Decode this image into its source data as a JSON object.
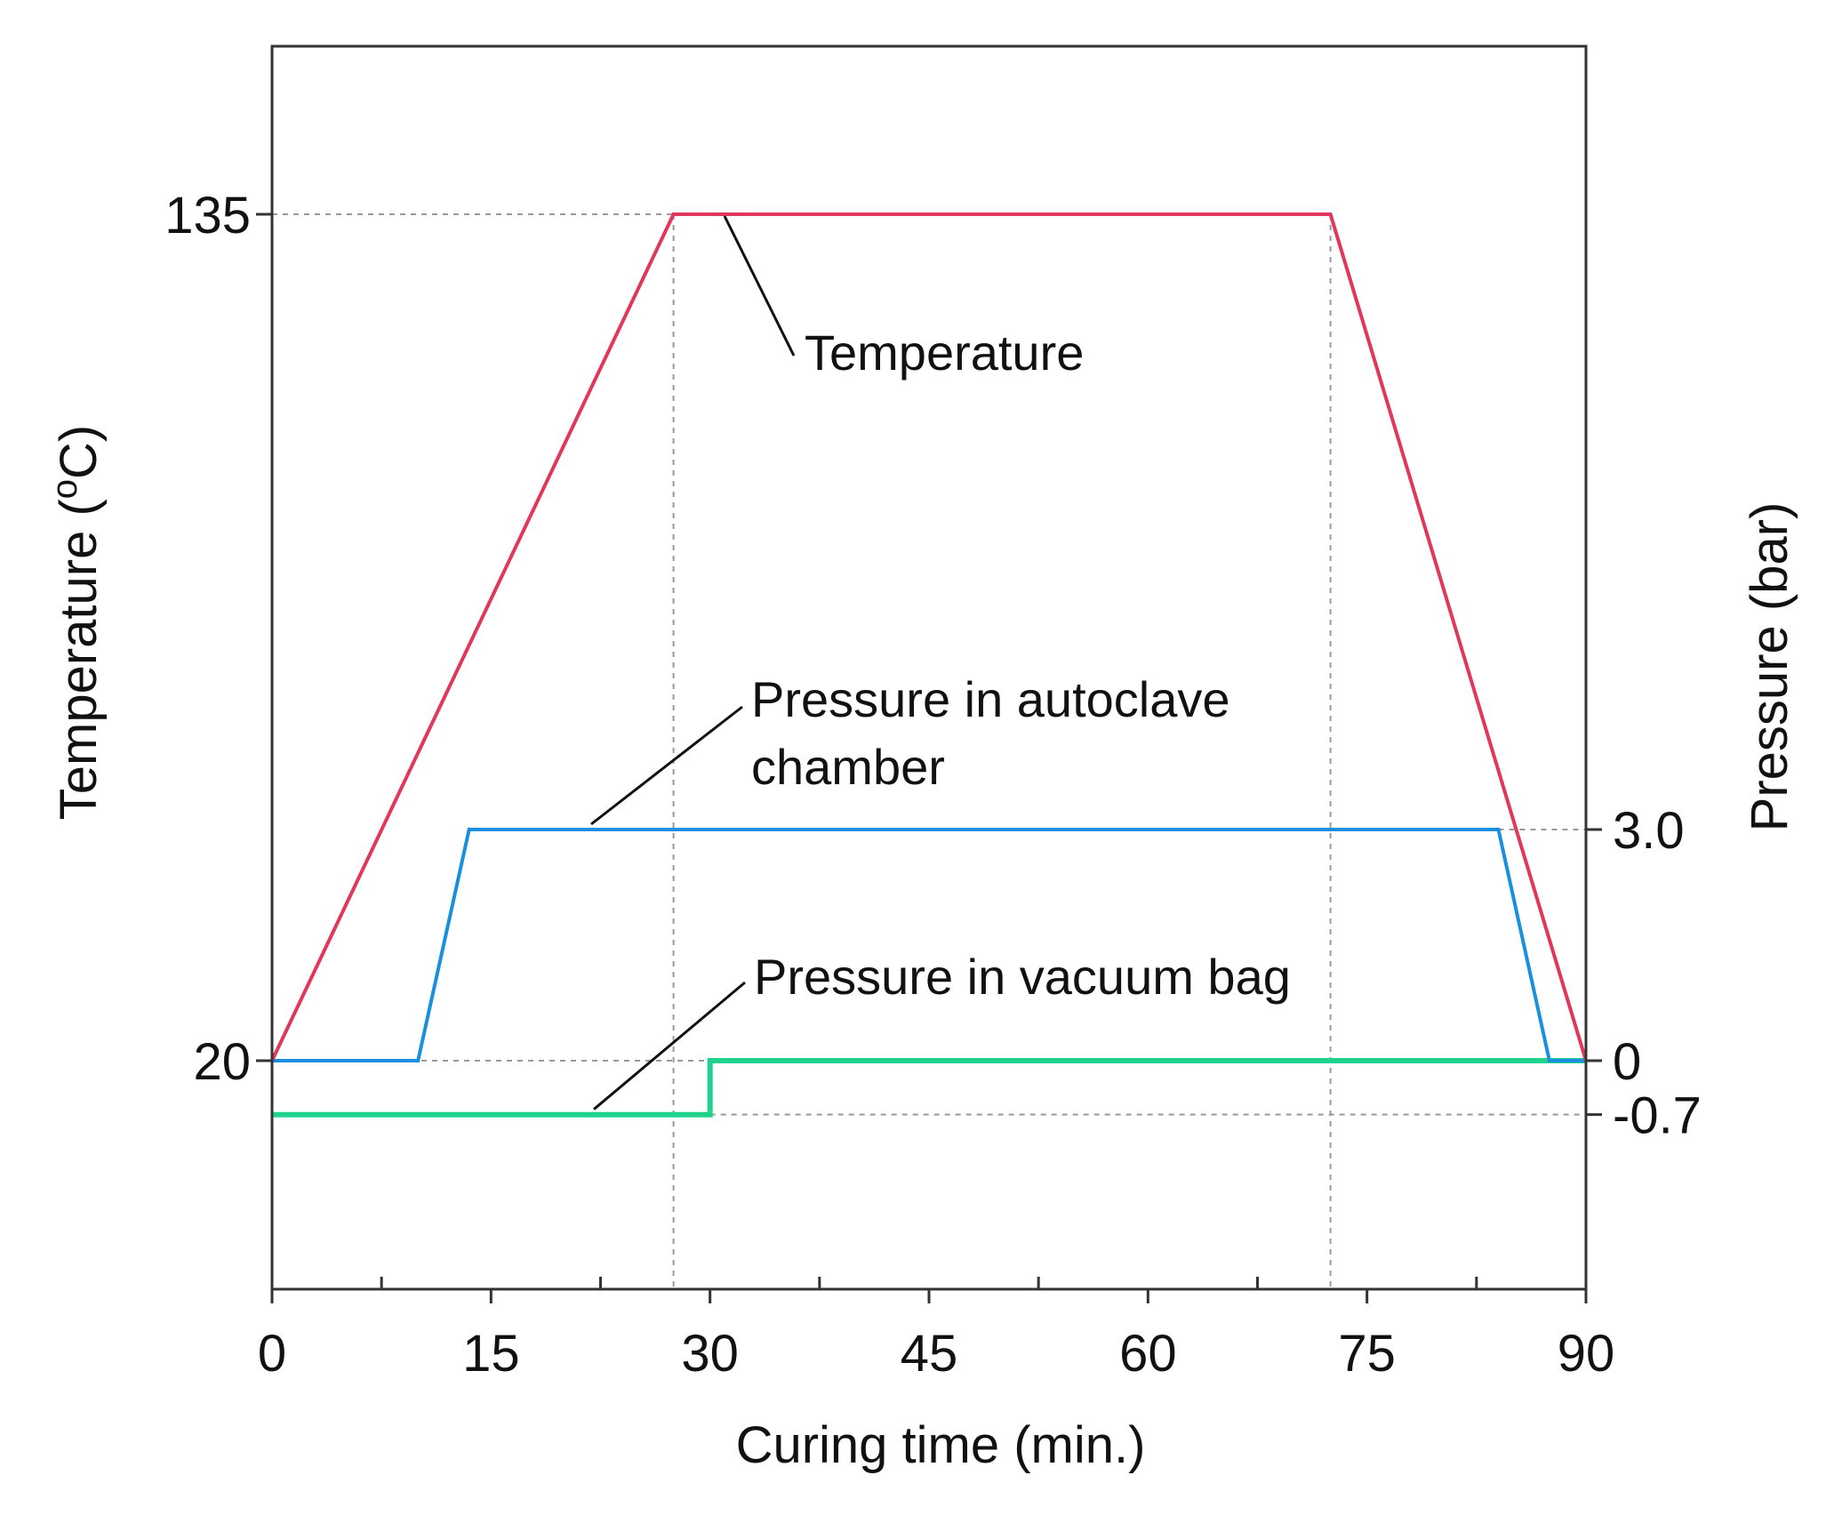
{
  "chart_data": {
    "type": "line",
    "title": "",
    "xlabel": "Curing time (min.)",
    "ylabel_left": "Temperature (°C)",
    "ylabel_left_parts": {
      "before": "Temperature (",
      "degree": "o",
      "after": "C)"
    },
    "ylabel_right": "Pressure (bar)",
    "xlim": [
      0,
      90
    ],
    "x_ticks": [
      0,
      15,
      30,
      45,
      60,
      75,
      90
    ],
    "x_tick_labels": [
      "0",
      "15",
      "30",
      "45",
      "60",
      "75",
      "90"
    ],
    "x_minor_ticks": [
      7.5,
      22.5,
      37.5,
      52.5,
      67.5,
      82.5
    ],
    "y_left_ticks": [
      20,
      135
    ],
    "y_left_tick_labels": [
      "20",
      "135"
    ],
    "y_right_ticks": [
      3.0,
      0,
      -0.7
    ],
    "y_right_tick_labels": [
      "3.0",
      "0",
      "-0.7"
    ],
    "series": [
      {
        "name": "Temperature",
        "axis": "left",
        "color": "#e0375b",
        "x": [
          0,
          27.5,
          72.5,
          90
        ],
        "y": [
          20,
          135,
          135,
          20
        ]
      },
      {
        "name": "Pressure in autoclave chamber",
        "axis": "right",
        "color": "#1a8fde",
        "x": [
          0,
          10,
          13.5,
          84,
          87.5,
          90
        ],
        "y": [
          0,
          0,
          3.0,
          3.0,
          0,
          0
        ]
      },
      {
        "name": "Pressure in vacuum bag",
        "axis": "right",
        "color": "#1fd38c",
        "x": [
          0,
          30,
          30,
          90
        ],
        "y": [
          -0.7,
          -0.7,
          0,
          0
        ]
      }
    ],
    "annotations": [
      {
        "series": "Temperature",
        "lines": [
          "Temperature"
        ]
      },
      {
        "series": "Pressure in autoclave chamber",
        "lines": [
          "Pressure in autoclave",
          "chamber"
        ]
      },
      {
        "series": "Pressure in vacuum bag",
        "lines": [
          "Pressure in vacuum bag"
        ]
      }
    ]
  }
}
